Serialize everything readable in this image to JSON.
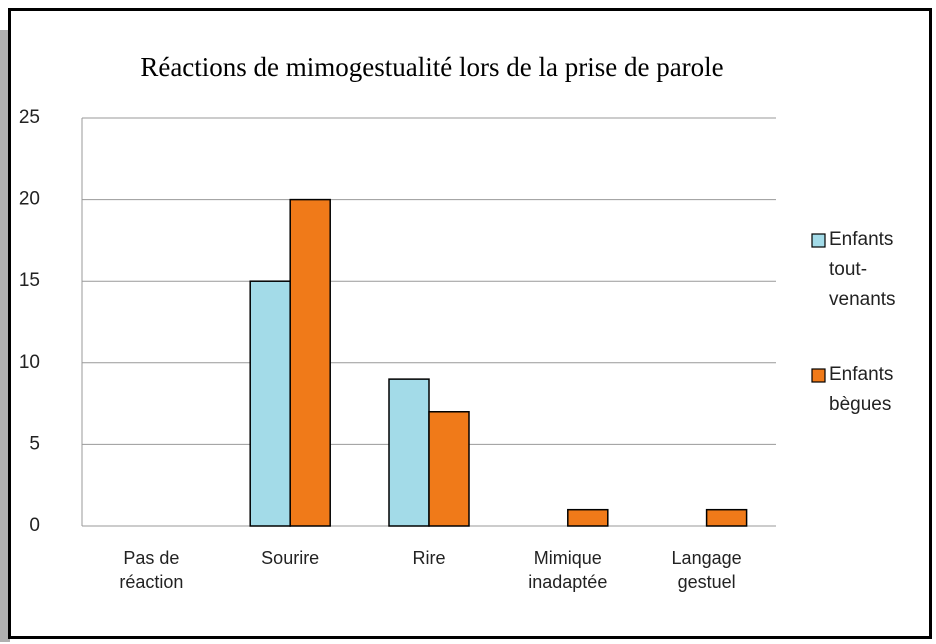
{
  "chart_data": {
    "type": "bar",
    "title": "Réactions de mimogestualité lors de la prise de parole",
    "categories": [
      "Pas de réaction",
      "Sourire",
      "Rire",
      "Mimique inadaptée",
      "Langage gestuel"
    ],
    "series": [
      {
        "name": "Enfants tout-venants",
        "color": "#a3dbe8",
        "values": [
          0,
          15,
          9,
          0,
          0
        ]
      },
      {
        "name": "Enfants bègues",
        "color": "#f07a19",
        "values": [
          0,
          20,
          7,
          1,
          1
        ]
      }
    ],
    "ylim": [
      0,
      25
    ],
    "yticks": [
      0,
      5,
      10,
      15,
      20,
      25
    ],
    "grid": true,
    "legend": "right"
  }
}
